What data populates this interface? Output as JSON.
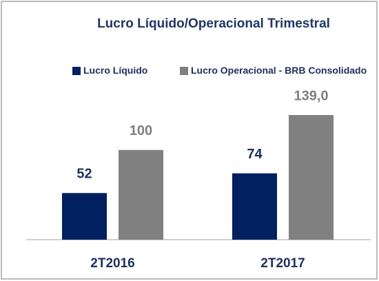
{
  "chart_data": {
    "type": "bar",
    "title": "Lucro Líquido/Operacional Trimestral",
    "categories": [
      "2T2016",
      "2T2017"
    ],
    "series": [
      {
        "name": "Lucro Líquido",
        "color": "#002060",
        "values": [
          52,
          74
        ]
      },
      {
        "name": "Lucro Operacional - BRB Consolidado",
        "color": "#808080",
        "values": [
          100,
          139.0
        ],
        "value_labels": [
          "100",
          "139,0"
        ]
      }
    ],
    "legend": "top"
  }
}
